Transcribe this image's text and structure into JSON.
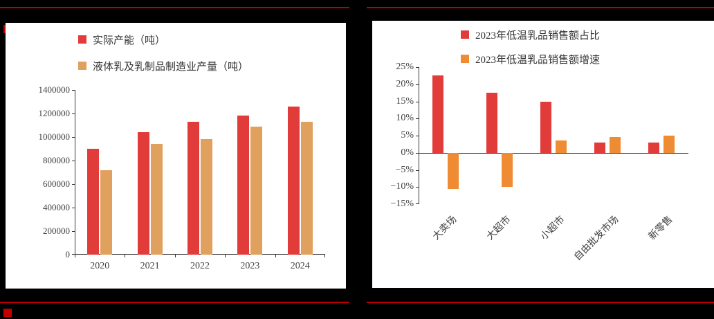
{
  "page": {
    "background": "#000000",
    "accent_color": "#c00000"
  },
  "chart_data": [
    {
      "type": "bar",
      "title": "",
      "legend_position": "top-left",
      "categories": [
        "2020",
        "2021",
        "2022",
        "2023",
        "2024"
      ],
      "series": [
        {
          "name": "实际产能（吨）",
          "color": "#e23c3a",
          "values": [
            900000,
            1040000,
            1130000,
            1180000,
            1260000
          ]
        },
        {
          "name": "液体乳及乳制品制造业产量（吨）",
          "color": "#e0a05e",
          "values": [
            720000,
            940000,
            980000,
            1090000,
            1130000
          ]
        }
      ],
      "xlabel": "",
      "ylabel": "",
      "ylim": [
        0,
        1400000
      ],
      "ytick_step": 200000,
      "ytick_labels": [
        "0",
        "200000",
        "400000",
        "600000",
        "800000",
        "1000000",
        "1200000",
        "1400000"
      ],
      "grid": false
    },
    {
      "type": "bar",
      "title": "",
      "legend_position": "top-center",
      "categories": [
        "大卖场",
        "大超市",
        "小超市",
        "自由批发市场",
        "新零售"
      ],
      "series": [
        {
          "name": "2023年低温乳品销售额占比",
          "color": "#e23c3a",
          "values": [
            22.5,
            17.5,
            15,
            3,
            3
          ]
        },
        {
          "name": "2023年低温乳品销售额增速",
          "color": "#ef8b33",
          "values": [
            -10.5,
            -10,
            3.5,
            4.5,
            5
          ]
        }
      ],
      "xlabel": "",
      "ylabel": "",
      "ylim": [
        -15,
        25
      ],
      "ytick_step": 5,
      "ytick_labels": [
        "−15%",
        "−10%",
        "−5%",
        "0%",
        "5%",
        "10%",
        "15%",
        "20%",
        "25%"
      ],
      "x_label_rotation": -45,
      "value_unit": "%",
      "grid": false
    }
  ]
}
